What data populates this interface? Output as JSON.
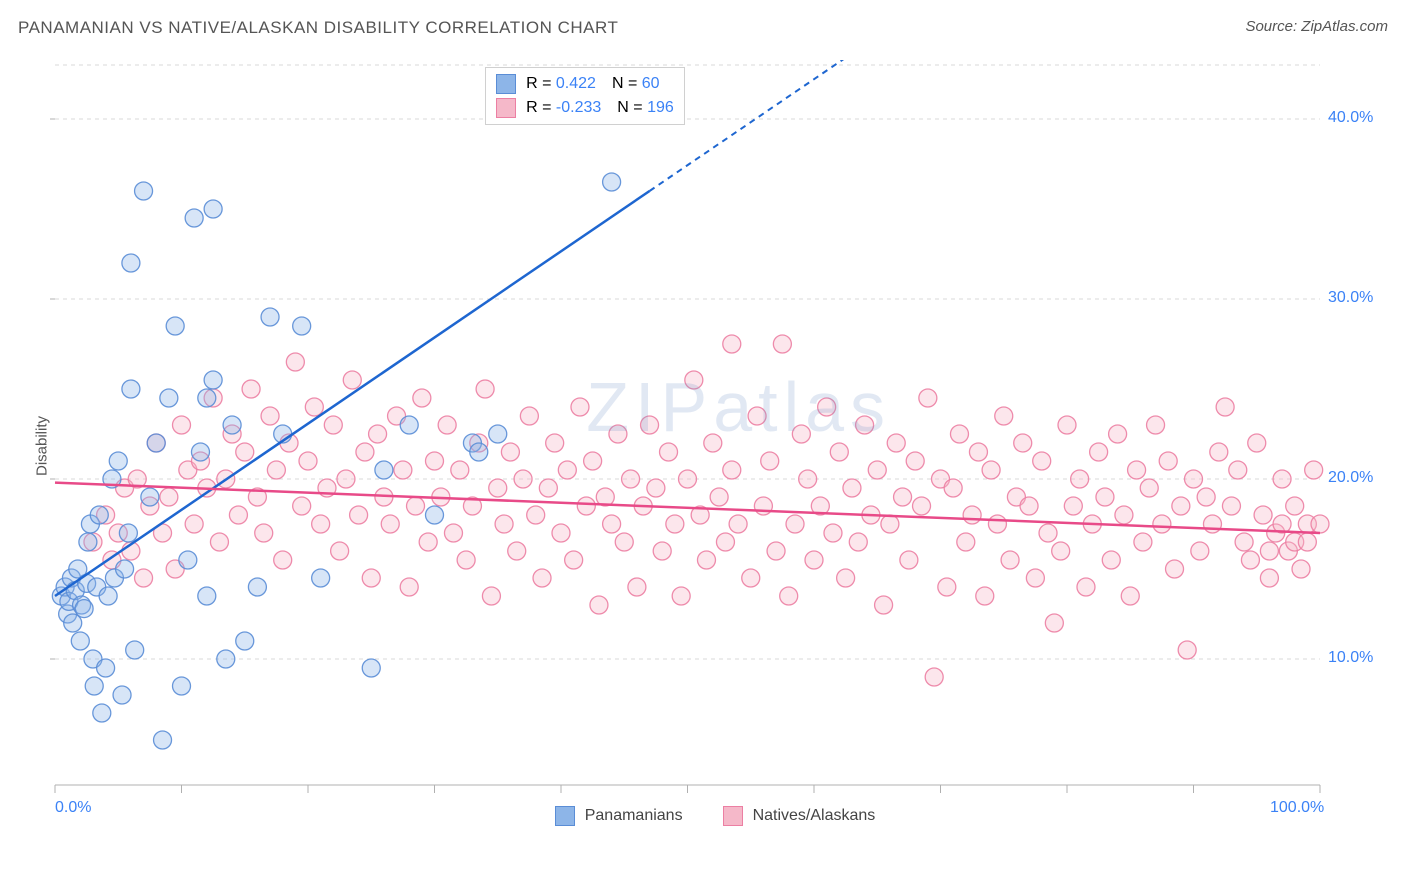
{
  "title": "PANAMANIAN VS NATIVE/ALASKAN DISABILITY CORRELATION CHART",
  "source": "Source: ZipAtlas.com",
  "ylabel": "Disability",
  "watermark": "ZIPatlas",
  "chart": {
    "type": "scatter",
    "xlim": [
      0,
      100
    ],
    "ylim": [
      3,
      43
    ],
    "x_ticks": [
      0,
      100
    ],
    "x_tick_labels": [
      "0.0%",
      "100.0%"
    ],
    "y_ticks": [
      10,
      20,
      30,
      40
    ],
    "y_tick_labels": [
      "10.0%",
      "20.0%",
      "30.0%",
      "40.0%"
    ],
    "background_color": "#ffffff",
    "grid_color": "#d9d9d9",
    "axis_line_color": "#b0b0b0",
    "marker_radius": 9,
    "marker_fill_opacity": 0.35,
    "marker_stroke_opacity": 0.9,
    "series": [
      {
        "name": "Panamanians",
        "color": "#8db5e8",
        "stroke": "#5a8dd6",
        "trend_color": "#1e66d0",
        "trend": {
          "x1": 0,
          "y1": 13.5,
          "x2": 47,
          "y2": 36,
          "dash_extend_x2": 65,
          "dash_extend_y2": 44.6
        },
        "R": "0.422",
        "N": "60",
        "points": [
          [
            0.5,
            13.5
          ],
          [
            0.8,
            14.0
          ],
          [
            1.0,
            12.5
          ],
          [
            1.1,
            13.2
          ],
          [
            1.3,
            14.5
          ],
          [
            1.4,
            12.0
          ],
          [
            1.6,
            13.8
          ],
          [
            1.8,
            15.0
          ],
          [
            2.0,
            11.0
          ],
          [
            2.1,
            13.0
          ],
          [
            2.3,
            12.8
          ],
          [
            2.5,
            14.2
          ],
          [
            2.6,
            16.5
          ],
          [
            2.8,
            17.5
          ],
          [
            3.0,
            10.0
          ],
          [
            3.1,
            8.5
          ],
          [
            3.3,
            14.0
          ],
          [
            3.5,
            18.0
          ],
          [
            3.7,
            7.0
          ],
          [
            4.0,
            9.5
          ],
          [
            4.2,
            13.5
          ],
          [
            4.5,
            20.0
          ],
          [
            4.7,
            14.5
          ],
          [
            5.0,
            21.0
          ],
          [
            5.3,
            8.0
          ],
          [
            5.5,
            15.0
          ],
          [
            5.8,
            17.0
          ],
          [
            6.0,
            32.0
          ],
          [
            6.3,
            10.5
          ],
          [
            6.0,
            25.0
          ],
          [
            7.0,
            36.0
          ],
          [
            7.5,
            19.0
          ],
          [
            8.0,
            22.0
          ],
          [
            8.5,
            5.5
          ],
          [
            9.0,
            24.5
          ],
          [
            9.5,
            28.5
          ],
          [
            10.0,
            8.5
          ],
          [
            10.5,
            15.5
          ],
          [
            11.0,
            34.5
          ],
          [
            11.5,
            21.5
          ],
          [
            12.0,
            13.5
          ],
          [
            12.5,
            25.5
          ],
          [
            13.5,
            10.0
          ],
          [
            14.0,
            23.0
          ],
          [
            12.0,
            24.5
          ],
          [
            15.0,
            11.0
          ],
          [
            16.0,
            14.0
          ],
          [
            17.0,
            29.0
          ],
          [
            18.0,
            22.5
          ],
          [
            19.5,
            28.5
          ],
          [
            21.0,
            14.5
          ],
          [
            25.0,
            9.5
          ],
          [
            26.0,
            20.5
          ],
          [
            28.0,
            23.0
          ],
          [
            30.0,
            18.0
          ],
          [
            33.0,
            22.0
          ],
          [
            33.5,
            21.5
          ],
          [
            35.0,
            22.5
          ],
          [
            44.0,
            36.5
          ],
          [
            12.5,
            35.0
          ]
        ]
      },
      {
        "name": "Natives/Alaskans",
        "color": "#f5b8c9",
        "stroke": "#ec7fa3",
        "trend_color": "#e84a88",
        "trend": {
          "x1": 0,
          "y1": 19.8,
          "x2": 100,
          "y2": 17.0
        },
        "R": "-0.233",
        "N": "196",
        "points": [
          [
            3,
            16.5
          ],
          [
            4,
            18
          ],
          [
            4.5,
            15.5
          ],
          [
            5,
            17
          ],
          [
            5.5,
            19.5
          ],
          [
            6,
            16
          ],
          [
            6.5,
            20
          ],
          [
            7,
            14.5
          ],
          [
            7.5,
            18.5
          ],
          [
            8,
            22
          ],
          [
            8.5,
            17
          ],
          [
            9,
            19
          ],
          [
            9.5,
            15
          ],
          [
            10,
            23
          ],
          [
            10.5,
            20.5
          ],
          [
            11,
            17.5
          ],
          [
            11.5,
            21
          ],
          [
            12,
            19.5
          ],
          [
            12.5,
            24.5
          ],
          [
            13,
            16.5
          ],
          [
            13.5,
            20
          ],
          [
            14,
            22.5
          ],
          [
            14.5,
            18
          ],
          [
            15,
            21.5
          ],
          [
            15.5,
            25
          ],
          [
            16,
            19
          ],
          [
            16.5,
            17
          ],
          [
            17,
            23.5
          ],
          [
            17.5,
            20.5
          ],
          [
            18,
            15.5
          ],
          [
            18.5,
            22
          ],
          [
            19,
            26.5
          ],
          [
            19.5,
            18.5
          ],
          [
            20,
            21
          ],
          [
            20.5,
            24
          ],
          [
            21,
            17.5
          ],
          [
            21.5,
            19.5
          ],
          [
            22,
            23
          ],
          [
            22.5,
            16
          ],
          [
            23,
            20
          ],
          [
            23.5,
            25.5
          ],
          [
            24,
            18
          ],
          [
            24.5,
            21.5
          ],
          [
            25,
            14.5
          ],
          [
            25.5,
            22.5
          ],
          [
            26,
            19
          ],
          [
            26.5,
            17.5
          ],
          [
            27,
            23.5
          ],
          [
            27.5,
            20.5
          ],
          [
            28,
            14
          ],
          [
            28.5,
            18.5
          ],
          [
            29,
            24.5
          ],
          [
            29.5,
            16.5
          ],
          [
            30,
            21
          ],
          [
            30.5,
            19
          ],
          [
            31,
            23
          ],
          [
            31.5,
            17
          ],
          [
            32,
            20.5
          ],
          [
            32.5,
            15.5
          ],
          [
            33,
            18.5
          ],
          [
            33.5,
            22
          ],
          [
            34,
            25
          ],
          [
            34.5,
            13.5
          ],
          [
            35,
            19.5
          ],
          [
            35.5,
            17.5
          ],
          [
            36,
            21.5
          ],
          [
            36.5,
            16
          ],
          [
            37,
            20
          ],
          [
            37.5,
            23.5
          ],
          [
            38,
            18
          ],
          [
            38.5,
            14.5
          ],
          [
            39,
            19.5
          ],
          [
            39.5,
            22
          ],
          [
            40,
            17
          ],
          [
            40.5,
            20.5
          ],
          [
            41,
            15.5
          ],
          [
            41.5,
            24
          ],
          [
            42,
            18.5
          ],
          [
            42.5,
            21
          ],
          [
            43,
            13
          ],
          [
            43.5,
            19
          ],
          [
            44,
            17.5
          ],
          [
            44.5,
            22.5
          ],
          [
            45,
            16.5
          ],
          [
            45.5,
            20
          ],
          [
            46,
            14
          ],
          [
            46.5,
            18.5
          ],
          [
            47,
            23
          ],
          [
            47.5,
            19.5
          ],
          [
            48,
            16
          ],
          [
            48.5,
            21.5
          ],
          [
            49,
            17.5
          ],
          [
            49.5,
            13.5
          ],
          [
            50,
            20
          ],
          [
            50.5,
            25.5
          ],
          [
            51,
            18
          ],
          [
            51.5,
            15.5
          ],
          [
            52,
            22
          ],
          [
            52.5,
            19
          ],
          [
            53,
            16.5
          ],
          [
            53.5,
            27.5
          ],
          [
            54,
            17.5
          ],
          [
            53.5,
            20.5
          ],
          [
            55,
            14.5
          ],
          [
            55.5,
            23.5
          ],
          [
            56,
            18.5
          ],
          [
            56.5,
            21
          ],
          [
            57,
            16
          ],
          [
            57.5,
            27.5
          ],
          [
            58,
            13.5
          ],
          [
            58.5,
            17.5
          ],
          [
            59,
            22.5
          ],
          [
            59.5,
            20
          ],
          [
            60,
            15.5
          ],
          [
            60.5,
            18.5
          ],
          [
            61,
            24
          ],
          [
            61.5,
            17
          ],
          [
            62,
            21.5
          ],
          [
            62.5,
            14.5
          ],
          [
            63,
            19.5
          ],
          [
            63.5,
            16.5
          ],
          [
            64,
            23
          ],
          [
            64.5,
            18
          ],
          [
            65,
            20.5
          ],
          [
            65.5,
            13
          ],
          [
            66,
            17.5
          ],
          [
            66.5,
            22
          ],
          [
            67,
            19
          ],
          [
            67.5,
            15.5
          ],
          [
            68,
            21
          ],
          [
            68.5,
            18.5
          ],
          [
            69,
            24.5
          ],
          [
            69.5,
            9
          ],
          [
            70,
            20
          ],
          [
            70.5,
            14
          ],
          [
            71,
            19.5
          ],
          [
            71.5,
            22.5
          ],
          [
            72,
            16.5
          ],
          [
            72.5,
            18
          ],
          [
            73,
            21.5
          ],
          [
            73.5,
            13.5
          ],
          [
            74,
            20.5
          ],
          [
            74.5,
            17.5
          ],
          [
            75,
            23.5
          ],
          [
            75.5,
            15.5
          ],
          [
            76,
            19
          ],
          [
            76.5,
            22
          ],
          [
            77,
            18.5
          ],
          [
            77.5,
            14.5
          ],
          [
            78,
            21
          ],
          [
            78.5,
            17
          ],
          [
            79,
            12
          ],
          [
            79.5,
            16
          ],
          [
            80,
            23
          ],
          [
            80.5,
            18.5
          ],
          [
            81,
            20
          ],
          [
            81.5,
            14
          ],
          [
            82,
            17.5
          ],
          [
            82.5,
            21.5
          ],
          [
            83,
            19
          ],
          [
            83.5,
            15.5
          ],
          [
            84,
            22.5
          ],
          [
            84.5,
            18
          ],
          [
            85,
            13.5
          ],
          [
            85.5,
            20.5
          ],
          [
            86,
            16.5
          ],
          [
            86.5,
            19.5
          ],
          [
            87,
            23
          ],
          [
            87.5,
            17.5
          ],
          [
            88,
            21
          ],
          [
            88.5,
            15
          ],
          [
            89,
            18.5
          ],
          [
            89.5,
            10.5
          ],
          [
            90,
            20
          ],
          [
            90.5,
            16
          ],
          [
            91,
            19
          ],
          [
            91.5,
            17.5
          ],
          [
            92,
            21.5
          ],
          [
            92.5,
            24
          ],
          [
            93,
            18.5
          ],
          [
            93.5,
            20.5
          ],
          [
            94,
            16.5
          ],
          [
            94.5,
            15.5
          ],
          [
            95,
            22
          ],
          [
            95.5,
            18
          ],
          [
            96,
            14.5
          ],
          [
            96.5,
            17
          ],
          [
            97,
            20
          ],
          [
            97.5,
            16
          ],
          [
            98,
            18.5
          ],
          [
            98.5,
            15
          ],
          [
            99,
            17.5
          ],
          [
            99.5,
            20.5
          ],
          [
            100,
            17.5
          ],
          [
            98,
            16.5
          ],
          [
            97,
            17.5
          ],
          [
            96,
            16
          ],
          [
            99,
            16.5
          ]
        ]
      }
    ]
  },
  "legend": {
    "bottom": [
      "Panamanians",
      "Natives/Alaskans"
    ],
    "box_labels": {
      "R": "R =",
      "N": "N ="
    }
  }
}
